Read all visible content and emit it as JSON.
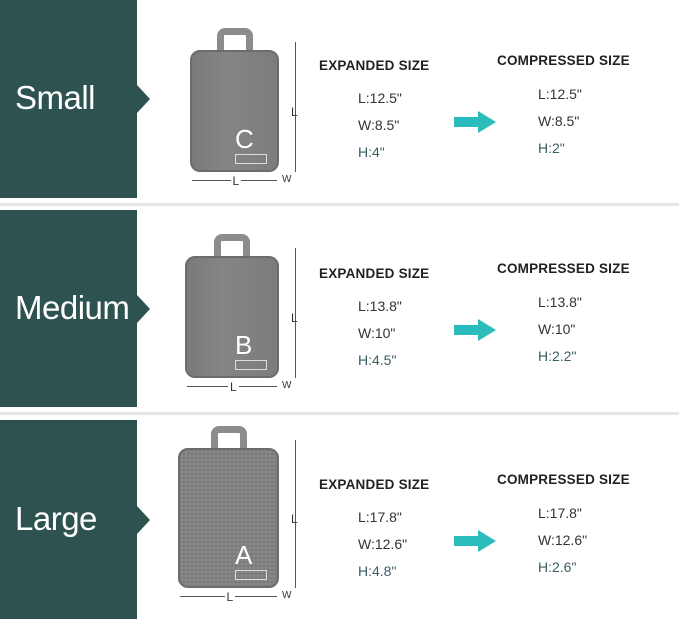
{
  "headers": {
    "expanded": "EXPANDED SIZE",
    "compressed": "COMPRESSED SIZE"
  },
  "dimension_labels": {
    "length": "L",
    "width": "W"
  },
  "colors": {
    "panel": "#2e5250",
    "arrow": "#2bbcbc",
    "bag": "#808080"
  },
  "sizes": [
    {
      "name": "Small",
      "letter": "C",
      "expanded": {
        "l": "L:12.5\"",
        "w": "W:8.5\"",
        "h": "H:4\""
      },
      "compressed": {
        "l": "L:12.5\"",
        "w": "W:8.5\"",
        "h": "H:2\""
      }
    },
    {
      "name": "Medium",
      "letter": "B",
      "expanded": {
        "l": "L:13.8\"",
        "w": "W:10\"",
        "h": "H:4.5\""
      },
      "compressed": {
        "l": "L:13.8\"",
        "w": "W:10\"",
        "h": "H:2.2\""
      }
    },
    {
      "name": "Large",
      "letter": "A",
      "expanded": {
        "l": "L:17.8\"",
        "w": "W:12.6\"",
        "h": "H:4.8\""
      },
      "compressed": {
        "l": "L:17.8\"",
        "w": "W:12.6\"",
        "h": "H:2.6\""
      }
    }
  ]
}
